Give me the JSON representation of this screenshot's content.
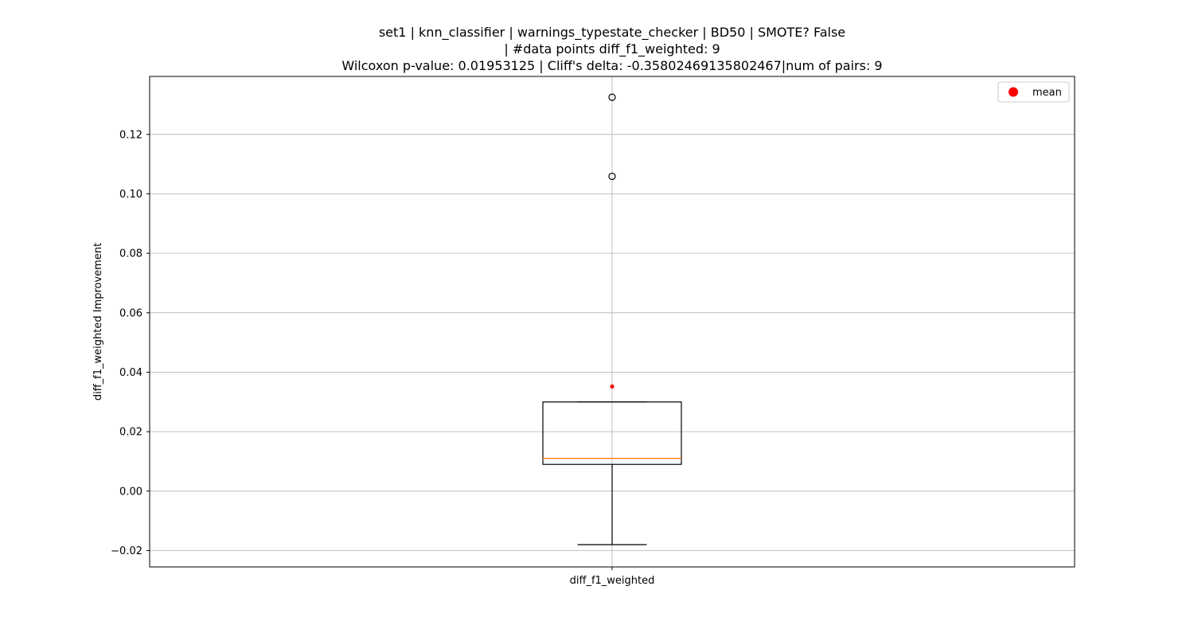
{
  "chart_data": {
    "type": "box",
    "title_lines": [
      "set1 | knn_classifier | warnings_typestate_checker | BD50 | SMOTE? False",
      "| #data points diff_f1_weighted: 9",
      "Wilcoxon p-value: 0.01953125 | Cliff's delta: -0.35802469135802467|num of pairs: 9"
    ],
    "ylabel": "diff_f1_weighted Improvement",
    "categories": [
      "diff_f1_weighted"
    ],
    "ylim": [
      -0.0255,
      0.1395
    ],
    "yticks": [
      -0.02,
      0.0,
      0.02,
      0.04,
      0.06,
      0.08,
      0.1,
      0.12
    ],
    "ytick_labels": [
      "−0.02",
      "0.00",
      "0.02",
      "0.04",
      "0.06",
      "0.08",
      "0.10",
      "0.12"
    ],
    "grid": true,
    "legend": {
      "position": "upper-right",
      "entries": [
        {
          "label": "mean",
          "color": "#ff0000"
        }
      ]
    },
    "boxes": [
      {
        "name": "diff_f1_weighted",
        "whisker_low": -0.018,
        "q1": 0.009,
        "median": 0.011,
        "q3": 0.03,
        "whisker_high": 0.03,
        "mean": 0.0352,
        "outliers": [
          0.1325,
          0.1059
        ]
      }
    ],
    "colors": {
      "box": "#000000",
      "median": "#ff7f0e",
      "mean": "#ff0000",
      "grid": "#b0b0b0"
    }
  }
}
